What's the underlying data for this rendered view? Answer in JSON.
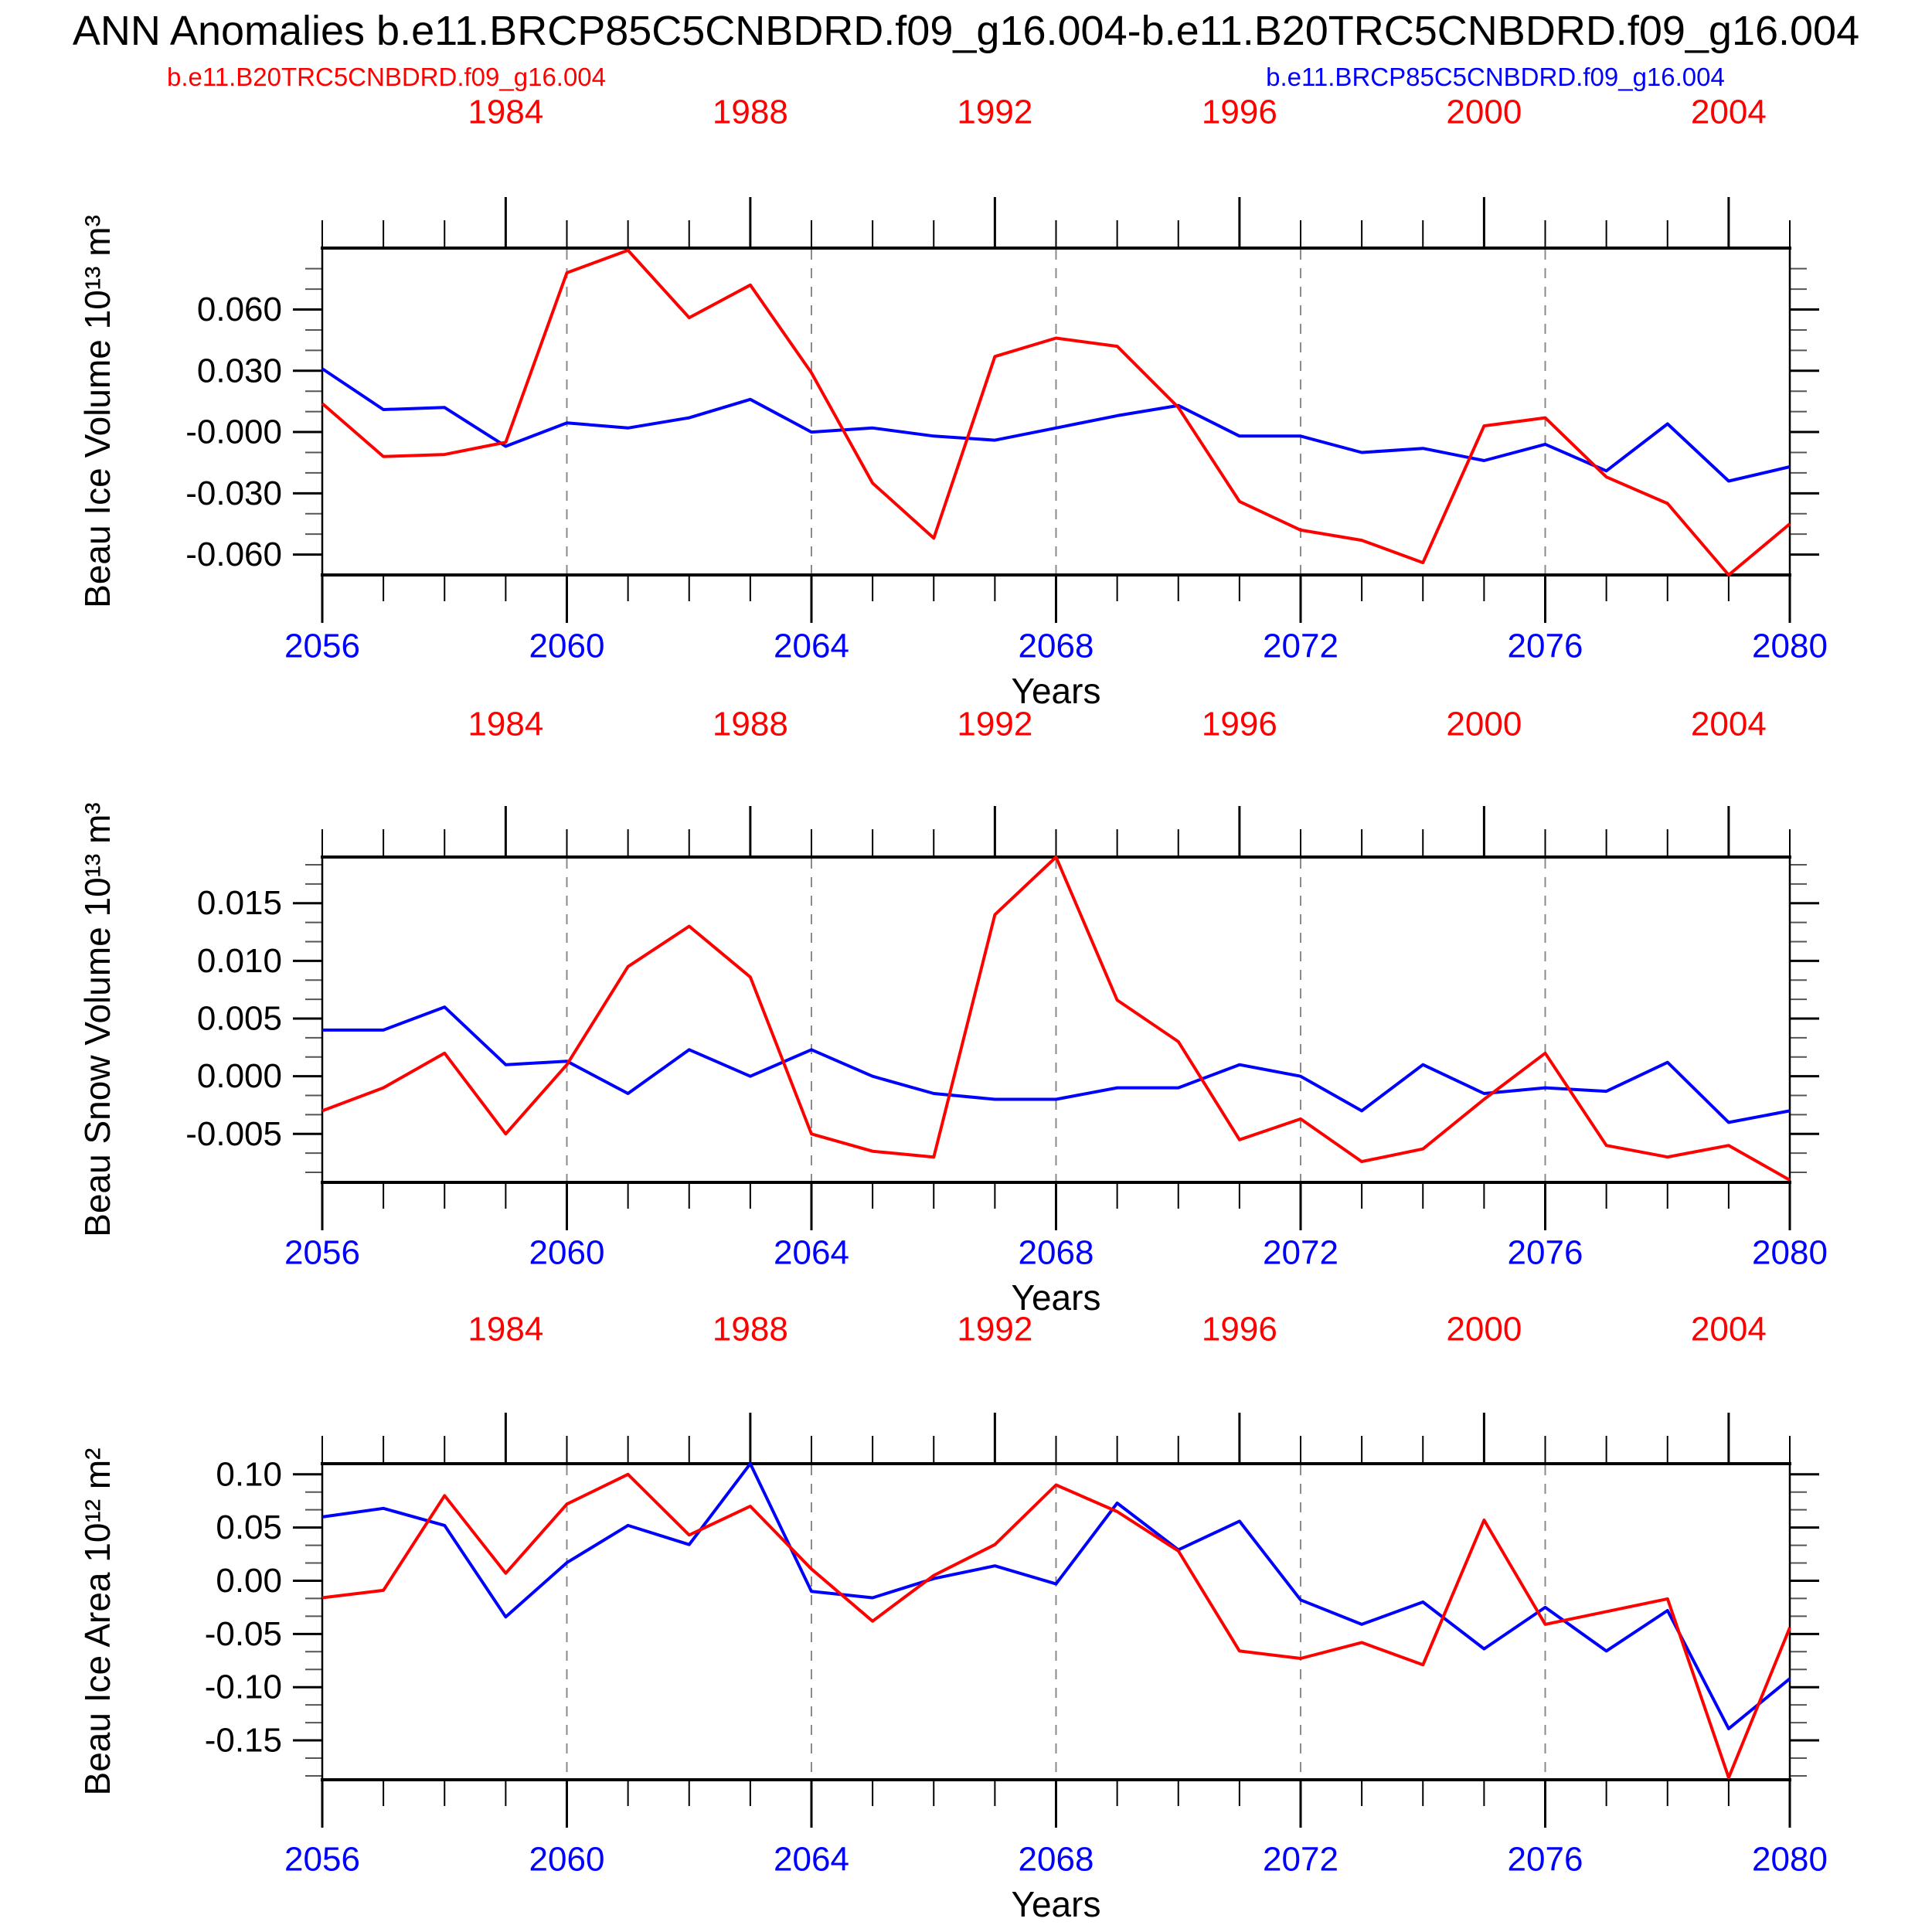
{
  "title": "ANN Anomalies b.e11.BRCP85C5CNBDRD.f09_g16.004-b.e11.B20TRC5CNBDRD.f09_g16.004",
  "legend": {
    "red_label": "b.e11.B20TRC5CNBDRD.f09_g16.004",
    "blue_label": "b.e11.BRCP85C5CNBDRD.f09_g16.004",
    "red_color": "#ff0000",
    "blue_color": "#0000ff"
  },
  "chart_data": [
    {
      "type": "line",
      "ylabel": "Beau Ice Volume 10¹³ m³",
      "xlabel": "Years",
      "ylim": [
        -0.07,
        0.0901
      ],
      "yticks": [
        0.06,
        0.03,
        0.0,
        -0.03,
        -0.06
      ],
      "ytick_labels": [
        "0.060",
        "0.030",
        "-0.000",
        "-0.030",
        "-0.060"
      ],
      "x_top": {
        "color": "#ff0000",
        "year_start": 1981,
        "major_tick_years": [
          1984,
          1988,
          1992,
          1996,
          2000,
          2004
        ]
      },
      "x_bottom": {
        "color": "#0000ff",
        "year_start": 2056,
        "major_tick_years": [
          2056,
          2060,
          2064,
          2068,
          2072,
          2076,
          2080
        ]
      },
      "grid_years": [
        2060,
        2064,
        2068,
        2072,
        2076
      ],
      "series": [
        {
          "name": "b.e11.BRCP85C5CNBDRD.f09_g16.004",
          "color": "#0000ff",
          "year_start": 2056,
          "values": [
            0.031,
            0.011,
            0.012,
            -0.007,
            0.0045,
            0.002,
            0.007,
            0.016,
            0.0,
            0.002,
            -0.002,
            -0.004,
            0.002,
            0.008,
            0.013,
            -0.002,
            -0.002,
            -0.01,
            -0.008,
            -0.014,
            -0.006,
            -0.019,
            0.004,
            -0.024,
            -0.017
          ]
        },
        {
          "name": "b.e11.B20TRC5CNBDRD.f09_g16.004",
          "color": "#ff0000",
          "year_start": 1981,
          "values": [
            0.014,
            -0.012,
            -0.011,
            -0.005,
            0.078,
            0.089,
            0.056,
            0.072,
            0.029,
            -0.025,
            -0.052,
            0.037,
            0.046,
            0.042,
            0.012,
            -0.034,
            -0.048,
            -0.053,
            -0.064,
            0.003,
            0.007,
            -0.022,
            -0.035,
            -0.07,
            -0.045
          ]
        }
      ]
    },
    {
      "type": "line",
      "ylabel": "Beau Snow Volume 10¹³ m³",
      "xlabel": "Years",
      "ylim": [
        -0.0092,
        0.019
      ],
      "yticks": [
        0.015,
        0.01,
        0.005,
        0.0,
        -0.005
      ],
      "ytick_labels": [
        "0.015",
        "0.010",
        "0.005",
        "0.000",
        "-0.005"
      ],
      "x_top": {
        "color": "#ff0000",
        "year_start": 1981,
        "major_tick_years": [
          1984,
          1988,
          1992,
          1996,
          2000,
          2004
        ]
      },
      "x_bottom": {
        "color": "#0000ff",
        "year_start": 2056,
        "major_tick_years": [
          2056,
          2060,
          2064,
          2068,
          2072,
          2076,
          2080
        ]
      },
      "grid_years": [
        2060,
        2064,
        2068,
        2072,
        2076
      ],
      "series": [
        {
          "name": "b.e11.BRCP85C5CNBDRD.f09_g16.004",
          "color": "#0000ff",
          "year_start": 2056,
          "values": [
            0.004,
            0.004,
            0.006,
            0.001,
            0.0013,
            -0.0015,
            0.0023,
            0.0,
            0.0023,
            0.0,
            -0.0015,
            -0.002,
            -0.002,
            -0.001,
            -0.001,
            0.001,
            0.0,
            -0.003,
            0.001,
            -0.0015,
            -0.001,
            -0.0013,
            0.0012,
            -0.004,
            -0.003
          ]
        },
        {
          "name": "b.e11.B20TRC5CNBDRD.f09_g16.004",
          "color": "#ff0000",
          "year_start": 1981,
          "values": [
            -0.003,
            -0.001,
            0.002,
            -0.005,
            0.001,
            0.0095,
            0.013,
            0.0086,
            -0.005,
            -0.0065,
            -0.007,
            0.014,
            0.019,
            0.0066,
            0.003,
            -0.0055,
            -0.0037,
            -0.0074,
            -0.0063,
            -0.002,
            0.002,
            -0.006,
            -0.007,
            -0.006,
            -0.009
          ]
        }
      ]
    },
    {
      "type": "line",
      "ylabel": "Beau Ice Area 10¹² m²",
      "xlabel": "Years",
      "ylim": [
        -0.187,
        0.11
      ],
      "yticks": [
        0.1,
        0.05,
        0.0,
        -0.05,
        -0.1,
        -0.15
      ],
      "ytick_labels": [
        "0.10",
        "0.05",
        "0.00",
        "-0.05",
        "-0.10",
        "-0.15"
      ],
      "x_top": {
        "color": "#ff0000",
        "year_start": 1981,
        "major_tick_years": [
          1984,
          1988,
          1992,
          1996,
          2000,
          2004
        ]
      },
      "x_bottom": {
        "color": "#0000ff",
        "year_start": 2056,
        "major_tick_years": [
          2056,
          2060,
          2064,
          2068,
          2072,
          2076,
          2080
        ]
      },
      "grid_years": [
        2060,
        2064,
        2068,
        2072,
        2076
      ],
      "series": [
        {
          "name": "b.e11.BRCP85C5CNBDRD.f09_g16.004",
          "color": "#0000ff",
          "year_start": 2056,
          "values": [
            0.06,
            0.068,
            0.052,
            -0.034,
            0.017,
            0.052,
            0.034,
            0.11,
            -0.01,
            -0.016,
            0.002,
            0.014,
            -0.003,
            0.073,
            0.029,
            0.056,
            -0.018,
            -0.041,
            -0.02,
            -0.064,
            -0.025,
            -0.066,
            -0.028,
            -0.139,
            -0.092
          ]
        },
        {
          "name": "b.e11.B20TRC5CNBDRD.f09_g16.004",
          "color": "#ff0000",
          "year_start": 1981,
          "values": [
            -0.016,
            -0.009,
            0.08,
            0.007,
            0.072,
            0.1,
            0.043,
            0.07,
            0.011,
            -0.038,
            0.005,
            0.034,
            0.09,
            0.065,
            0.028,
            -0.066,
            -0.073,
            -0.058,
            -0.079,
            0.057,
            -0.041,
            -0.029,
            -0.017,
            -0.185,
            -0.044
          ]
        }
      ]
    }
  ]
}
